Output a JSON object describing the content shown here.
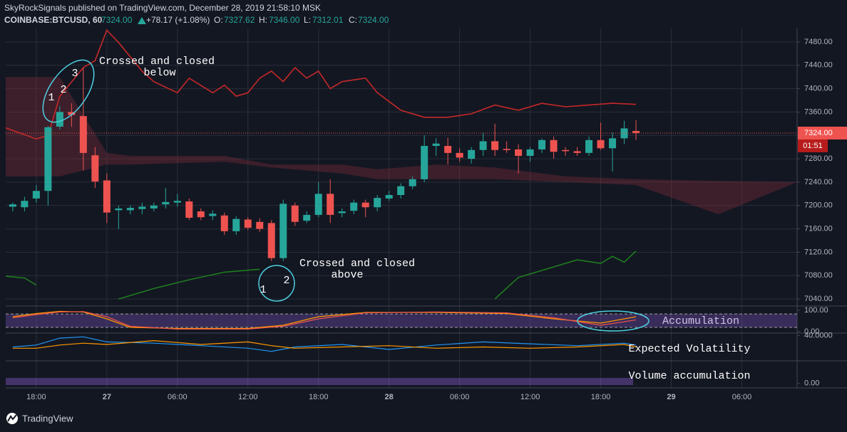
{
  "header": {
    "publisher": "SkyRockSignals published on TradingView.com, December 28, 2019 21:58:10 MSK",
    "symbol": "COINBASE:BTCUSD, 60",
    "last": "7324.00",
    "change": "+78.17 (+1.08%)",
    "o_label": "O:",
    "o": "7327.62",
    "h_label": "H:",
    "h": "7346.00",
    "l_label": "L:",
    "l": "7312.01",
    "c_label": "C:",
    "c": "7324.00"
  },
  "footer": {
    "brand": "TradingView"
  },
  "chart_data": [
    {
      "type": "candlestick",
      "up_color": "#26a69a",
      "down_color": "#ef5350",
      "x": [
        -2,
        -1,
        0,
        1,
        2,
        3,
        4,
        5,
        6,
        7,
        8,
        9,
        10,
        11,
        12,
        13,
        14,
        15,
        16,
        17,
        18,
        19,
        20,
        21,
        22,
        23,
        24,
        25,
        26,
        27,
        28,
        29,
        30,
        31,
        32,
        33,
        34,
        35,
        36,
        37,
        38,
        39,
        40,
        41,
        42,
        43,
        44,
        45,
        46,
        47,
        48,
        49,
        50,
        51
      ],
      "open": [
        7198,
        7197,
        7212,
        7225,
        7335,
        7360,
        7353,
        7286,
        7243,
        7192,
        7192,
        7194,
        7195,
        7202,
        7205,
        7207,
        7190,
        7182,
        7183,
        7156,
        7176,
        7172,
        7170,
        7110,
        7200,
        7174,
        7184,
        7220,
        7187,
        7191,
        7205,
        7197,
        7212,
        7218,
        7233,
        7245,
        7302,
        7302,
        7290,
        7280,
        7295,
        7310,
        7297,
        7296,
        7285,
        7296,
        7312,
        7295,
        7293,
        7290,
        7312,
        7298,
        7315,
        7327.62
      ],
      "high": [
        7205,
        7215,
        7235,
        7336,
        7370,
        7375,
        7436,
        7300,
        7255,
        7200,
        7200,
        7205,
        7205,
        7230,
        7220,
        7212,
        7195,
        7192,
        7188,
        7182,
        7180,
        7178,
        7175,
        7210,
        7205,
        7190,
        7240,
        7245,
        7195,
        7210,
        7210,
        7218,
        7225,
        7238,
        7250,
        7320,
        7315,
        7316,
        7298,
        7300,
        7325,
        7340,
        7310,
        7305,
        7300,
        7315,
        7318,
        7300,
        7300,
        7318,
        7342,
        7325,
        7345,
        7346
      ],
      "low": [
        7190,
        7190,
        7205,
        7200,
        7330,
        7335,
        7260,
        7230,
        7170,
        7160,
        7185,
        7185,
        7190,
        7195,
        7198,
        7175,
        7175,
        7175,
        7150,
        7150,
        7158,
        7155,
        7105,
        7105,
        7165,
        7170,
        7180,
        7170,
        7180,
        7185,
        7180,
        7190,
        7208,
        7212,
        7228,
        7240,
        7285,
        7270,
        7275,
        7272,
        7285,
        7285,
        7290,
        7255,
        7275,
        7290,
        7280,
        7285,
        7285,
        7285,
        7295,
        7258,
        7305,
        7312.01
      ],
      "close": [
        7202,
        7208,
        7225,
        7334,
        7360,
        7355,
        7290,
        7241,
        7188,
        7195,
        7196,
        7198,
        7200,
        7206,
        7208,
        7179,
        7180,
        7186,
        7156,
        7177,
        7162,
        7160,
        7110,
        7203,
        7172,
        7184,
        7220,
        7184,
        7190,
        7205,
        7197,
        7213,
        7218,
        7233,
        7245,
        7302,
        7306,
        7290,
        7282,
        7295,
        7310,
        7295,
        7295,
        7285,
        7296,
        7312,
        7292,
        7293,
        7290,
        7312,
        7298,
        7315,
        7332,
        7324
      ],
      "xlim": [
        -2.6,
        64.7
      ],
      "xticks": [
        {
          "value": 0,
          "label": "18:00"
        },
        {
          "value": 6,
          "label": "27"
        },
        {
          "value": 12,
          "label": "06:00"
        },
        {
          "value": 18,
          "label": "12:00"
        },
        {
          "value": 24,
          "label": "18:00"
        },
        {
          "value": 30,
          "label": "28"
        },
        {
          "value": 36,
          "label": "06:00"
        },
        {
          "value": 42,
          "label": "12:00"
        },
        {
          "value": 48,
          "label": "18:00"
        },
        {
          "value": 54,
          "label": "29"
        },
        {
          "value": 60,
          "label": "06:00"
        }
      ],
      "ylim": [
        7028,
        7503
      ],
      "yticks": [
        {
          "value": 7040,
          "label": "7040.00"
        },
        {
          "value": 7080,
          "label": "7080.00"
        },
        {
          "value": 7120,
          "label": "7120.00"
        },
        {
          "value": 7160,
          "label": "7160.00"
        },
        {
          "value": 7200,
          "label": "7200.00"
        },
        {
          "value": 7240,
          "label": "7240.00"
        },
        {
          "value": 7280,
          "label": "7280.00"
        },
        {
          "value": 7320,
          "label": "7320.00"
        },
        {
          "value": 7360,
          "label": "7360.00"
        },
        {
          "value": 7400,
          "label": "7400.00"
        },
        {
          "value": 7440,
          "label": "7440.00"
        },
        {
          "value": 7480,
          "label": "7480.00"
        }
      ],
      "grid": true,
      "price_tag": {
        "value": 7324,
        "label": "7324.00"
      },
      "countdown": "01:51",
      "cloud": {
        "color": "#7a2e3a",
        "x": [
          -2.6,
          2,
          6,
          8,
          16,
          20,
          26,
          29,
          34,
          39,
          45,
          51,
          58,
          64.7
        ],
        "upper": [
          7420,
          7420,
          7290,
          7285,
          7285,
          7270,
          7270,
          7262,
          7270,
          7265,
          7250,
          7245,
          7242,
          7240
        ],
        "lower": [
          7250,
          7250,
          7270,
          7270,
          7275,
          7265,
          7255,
          7245,
          7245,
          7245,
          7240,
          7235,
          7185,
          7240
        ]
      },
      "lines": [
        {
          "color": "#c62828",
          "x": [
            -2.6,
            0,
            1,
            2,
            4,
            5,
            6,
            7,
            9,
            10,
            12,
            13,
            15,
            16,
            17,
            18,
            19,
            20,
            21,
            22,
            23,
            24,
            25,
            26,
            28,
            29,
            31,
            33,
            35,
            37,
            39,
            41,
            43,
            45,
            47,
            49,
            51
          ],
          "values": [
            7333,
            7314,
            7320,
            7387,
            7436,
            7448,
            7500,
            7479,
            7430,
            7412,
            7393,
            7418,
            7393,
            7406,
            7387,
            7393,
            7418,
            7430,
            7412,
            7436,
            7418,
            7430,
            7400,
            7412,
            7418,
            7393,
            7363,
            7351,
            7351,
            7357,
            7372,
            7363,
            7375,
            7369,
            7372,
            7375,
            7373
          ]
        },
        {
          "color": "#1e7d1e",
          "x": [
            -2.6,
            -1,
            0,
            3,
            7,
            10,
            13,
            16,
            19,
            30,
            39,
            41,
            44,
            46,
            48,
            49,
            50,
            51
          ],
          "values": [
            7079,
            7076,
            7064,
            null,
            7040,
            7058,
            7073,
            7086,
            7091,
            null,
            7040,
            7077,
            7095,
            7107,
            7101,
            7113,
            7103,
            7122
          ]
        }
      ],
      "annotations": [
        "Crossed and closed",
        "below",
        "Crossed and closed",
        "above",
        "1",
        "2",
        "3",
        "1",
        "2",
        "Accumulation",
        "Expected Volatility",
        "Volume accumulation"
      ]
    },
    {
      "type": "line",
      "ylim": [
        -6.7,
        120
      ],
      "yticks": [
        {
          "value": 100,
          "label": "100.00"
        },
        {
          "value": 0,
          "label": "0.00"
        }
      ],
      "band": [
        20,
        83
      ],
      "band_color": "#7e57c2",
      "series": [
        {
          "color": "#ff9800",
          "x": [
            -2,
            0,
            2,
            4,
            6,
            8,
            12,
            18,
            21,
            24,
            28,
            34,
            40,
            44,
            48,
            51
          ],
          "values": [
            70,
            85,
            95,
            92,
            60,
            20,
            15,
            15,
            30,
            70,
            90,
            90,
            85,
            60,
            40,
            70
          ]
        },
        {
          "color": "#ef5350",
          "x": [
            -2,
            0,
            2,
            4,
            6,
            8,
            12,
            18,
            21,
            24,
            28,
            34,
            40,
            44,
            48,
            51
          ],
          "values": [
            65,
            80,
            92,
            94,
            70,
            25,
            12,
            12,
            25,
            60,
            88,
            92,
            88,
            65,
            30,
            55
          ]
        }
      ]
    },
    {
      "type": "line",
      "ylim": [
        0,
        44
      ],
      "yticks": [
        {
          "value": 40,
          "label": "40.0000"
        }
      ],
      "series": [
        {
          "color": "#2196f3",
          "x": [
            -2,
            0,
            2,
            4,
            6,
            10,
            14,
            18,
            20,
            22,
            26,
            30,
            34,
            38,
            42,
            46,
            50,
            51
          ],
          "values": [
            22,
            25,
            36,
            38,
            30,
            28,
            24,
            20,
            15,
            22,
            26,
            18,
            25,
            30,
            27,
            24,
            28,
            25
          ]
        },
        {
          "color": "#ff9800",
          "x": [
            -2,
            0,
            2,
            4,
            6,
            10,
            14,
            18,
            20,
            22,
            26,
            30,
            34,
            38,
            42,
            46,
            50,
            51
          ],
          "values": [
            20,
            20,
            25,
            28,
            26,
            32,
            26,
            30,
            24,
            20,
            22,
            24,
            20,
            22,
            20,
            22,
            26,
            22
          ]
        }
      ]
    },
    {
      "type": "line",
      "ylim": [
        -20,
        100
      ],
      "yticks": [
        {
          "value": 0,
          "label": "0.00"
        }
      ],
      "series": []
    }
  ]
}
